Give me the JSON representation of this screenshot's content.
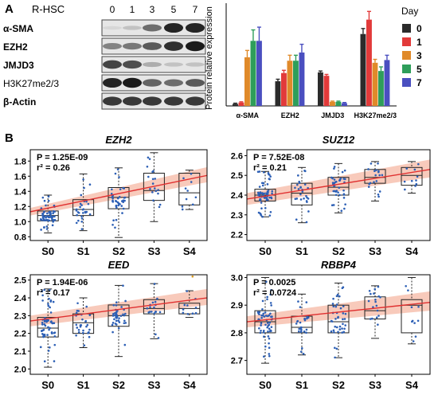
{
  "panel_labels": {
    "a": "A",
    "b": "B"
  },
  "blot": {
    "header_label": "R-HSC",
    "days": [
      "0",
      "1",
      "3",
      "5",
      "7"
    ],
    "rows": [
      {
        "label": "α-SMA",
        "intensity": [
          0.05,
          0.15,
          0.55,
          0.9,
          0.9
        ]
      },
      {
        "label": "EZH2",
        "intensity": [
          0.45,
          0.5,
          0.65,
          0.85,
          0.95
        ]
      },
      {
        "label": "JMJD3",
        "intensity": [
          0.75,
          0.7,
          0.25,
          0.15,
          0.15
        ]
      },
      {
        "label": "H3K27me2/3",
        "intensity": [
          0.9,
          0.95,
          0.6,
          0.55,
          0.65
        ]
      },
      {
        "label": "β-Actin",
        "intensity": [
          0.8,
          0.8,
          0.8,
          0.8,
          0.8
        ]
      }
    ]
  },
  "colors": {
    "day0": "#2b2b2b",
    "day1": "#e23a3a",
    "day3": "#e08a2a",
    "day5": "#2e9e5a",
    "day7": "#4a4fc0",
    "fit_line": "#e03030",
    "ci_band": "#f6b8a4",
    "box_point": "#2c5fb5",
    "outlier": "#d89a20"
  },
  "chart_data": [
    {
      "type": "bar",
      "ylabel": "Protein relative expression",
      "categories": [
        "α-SMA",
        "EZH2",
        "JMJD3",
        "H3K27me2/3"
      ],
      "ylim": [
        0,
        1.5
      ],
      "legend_title": "Day",
      "legend_position": "right",
      "series": [
        {
          "name": "0",
          "values": [
            0.03,
            0.36,
            0.49,
            1.05
          ],
          "errors": [
            0.01,
            0.03,
            0.02,
            0.08
          ]
        },
        {
          "name": "1",
          "values": [
            0.05,
            0.48,
            0.44,
            1.26
          ],
          "errors": [
            0.01,
            0.04,
            0.02,
            0.12
          ]
        },
        {
          "name": "3",
          "values": [
            0.71,
            0.66,
            0.06,
            0.63
          ],
          "errors": [
            0.1,
            0.08,
            0.01,
            0.05
          ]
        },
        {
          "name": "5",
          "values": [
            0.95,
            0.66,
            0.06,
            0.51
          ],
          "errors": [
            0.16,
            0.08,
            0.01,
            0.06
          ]
        },
        {
          "name": "7",
          "values": [
            0.95,
            0.78,
            0.04,
            0.67
          ],
          "errors": [
            0.2,
            0.12,
            0.01,
            0.07
          ]
        }
      ]
    },
    {
      "type": "box",
      "title": "EZH2",
      "categories": [
        "S0",
        "S1",
        "S2",
        "S3",
        "S4"
      ],
      "ylim": [
        0.75,
        1.95
      ],
      "yticks": [
        "0.8",
        "1.0",
        "1.2",
        "1.4",
        "1.6",
        "1.8"
      ],
      "stat_p": "P = 1.25E-09",
      "stat_r2": "r² = 0.26",
      "boxes": [
        {
          "min": 0.85,
          "q1": 1.01,
          "median": 1.08,
          "q3": 1.14,
          "max": 1.35,
          "n": 60,
          "outliers": []
        },
        {
          "min": 0.88,
          "q1": 1.08,
          "median": 1.16,
          "q3": 1.29,
          "max": 1.63,
          "n": 28,
          "outliers": []
        },
        {
          "min": 0.79,
          "q1": 1.17,
          "median": 1.32,
          "q3": 1.45,
          "max": 1.71,
          "n": 40,
          "outliers": []
        },
        {
          "min": 1.0,
          "q1": 1.28,
          "median": 1.41,
          "q3": 1.64,
          "max": 1.91,
          "n": 18,
          "outliers": []
        },
        {
          "min": 1.16,
          "q1": 1.22,
          "median": 1.38,
          "q3": 1.64,
          "max": 1.68,
          "n": 10,
          "outliers": []
        }
      ],
      "fit": {
        "start": 1.13,
        "end": 1.61,
        "band_start": [
          1.08,
          1.18
        ],
        "band_end": [
          1.52,
          1.72
        ]
      }
    },
    {
      "type": "box",
      "title": "SUZ12",
      "categories": [
        "S0",
        "S1",
        "S2",
        "S3",
        "S4"
      ],
      "ylim": [
        2.17,
        2.63
      ],
      "yticks": [
        "2.2",
        "2.3",
        "2.4",
        "2.5",
        "2.6"
      ],
      "stat_p": "P = 7.52E-08",
      "stat_r2": "r² = 0.21",
      "boxes": [
        {
          "min": 2.29,
          "q1": 2.37,
          "median": 2.4,
          "q3": 2.43,
          "max": 2.52,
          "n": 60,
          "outliers": []
        },
        {
          "min": 2.26,
          "q1": 2.35,
          "median": 2.41,
          "q3": 2.46,
          "max": 2.54,
          "n": 28,
          "outliers": []
        },
        {
          "min": 2.31,
          "q1": 2.4,
          "median": 2.44,
          "q3": 2.49,
          "max": 2.56,
          "n": 40,
          "outliers": []
        },
        {
          "min": 2.37,
          "q1": 2.46,
          "median": 2.49,
          "q3": 2.53,
          "max": 2.57,
          "n": 18,
          "outliers": []
        },
        {
          "min": 2.41,
          "q1": 2.45,
          "median": 2.5,
          "q3": 2.54,
          "max": 2.57,
          "n": 10,
          "outliers": []
        }
      ],
      "fit": {
        "start": 2.38,
        "end": 2.53,
        "band_start": [
          2.35,
          2.41
        ],
        "band_end": [
          2.49,
          2.58
        ]
      }
    },
    {
      "type": "box",
      "title": "EED",
      "categories": [
        "S0",
        "S1",
        "S2",
        "S3",
        "S4"
      ],
      "ylim": [
        1.97,
        2.53
      ],
      "yticks": [
        "2.0",
        "2.1",
        "2.2",
        "2.3",
        "2.4",
        "2.5"
      ],
      "stat_p": "P = 1.94E-06",
      "stat_r2": "r² = 0.17",
      "boxes": [
        {
          "min": 2.01,
          "q1": 2.18,
          "median": 2.23,
          "q3": 2.29,
          "max": 2.45,
          "n": 60,
          "outliers": []
        },
        {
          "min": 2.12,
          "q1": 2.2,
          "median": 2.26,
          "q3": 2.31,
          "max": 2.4,
          "n": 28,
          "outliers": []
        },
        {
          "min": 2.07,
          "q1": 2.24,
          "median": 2.3,
          "q3": 2.36,
          "max": 2.47,
          "n": 40,
          "outliers": []
        },
        {
          "min": 2.17,
          "q1": 2.31,
          "median": 2.34,
          "q3": 2.39,
          "max": 2.48,
          "n": 18,
          "outliers": []
        },
        {
          "min": 2.29,
          "q1": 2.31,
          "median": 2.34,
          "q3": 2.37,
          "max": 2.44,
          "n": 10,
          "outliers": [
            2.52
          ]
        }
      ],
      "fit": {
        "start": 2.27,
        "end": 2.4,
        "band_start": [
          2.24,
          2.3
        ],
        "band_end": [
          2.36,
          2.45
        ]
      }
    },
    {
      "type": "box",
      "title": "RBBP4",
      "categories": [
        "S0",
        "S1",
        "S2",
        "S3",
        "S4"
      ],
      "ylim": [
        2.65,
        3.01
      ],
      "yticks": [
        "2.7",
        "2.8",
        "2.9",
        "3.0"
      ],
      "stat_p": "P = 0.0025",
      "stat_r2": "r² = 0.0724",
      "boxes": [
        {
          "min": 2.69,
          "q1": 2.8,
          "median": 2.84,
          "q3": 2.88,
          "max": 3.0,
          "n": 60,
          "outliers": []
        },
        {
          "min": 2.72,
          "q1": 2.8,
          "median": 2.82,
          "q3": 2.86,
          "max": 2.94,
          "n": 28,
          "outliers": []
        },
        {
          "min": 2.71,
          "q1": 2.8,
          "median": 2.84,
          "q3": 2.9,
          "max": 2.98,
          "n": 40,
          "outliers": []
        },
        {
          "min": 2.78,
          "q1": 2.85,
          "median": 2.88,
          "q3": 2.93,
          "max": 2.97,
          "n": 18,
          "outliers": []
        },
        {
          "min": 2.76,
          "q1": 2.8,
          "median": 2.9,
          "q3": 2.92,
          "max": 3.0,
          "n": 10,
          "outliers": []
        }
      ],
      "fit": {
        "start": 2.84,
        "end": 2.91,
        "band_start": [
          2.82,
          2.86
        ],
        "band_end": [
          2.88,
          2.95
        ]
      }
    }
  ]
}
